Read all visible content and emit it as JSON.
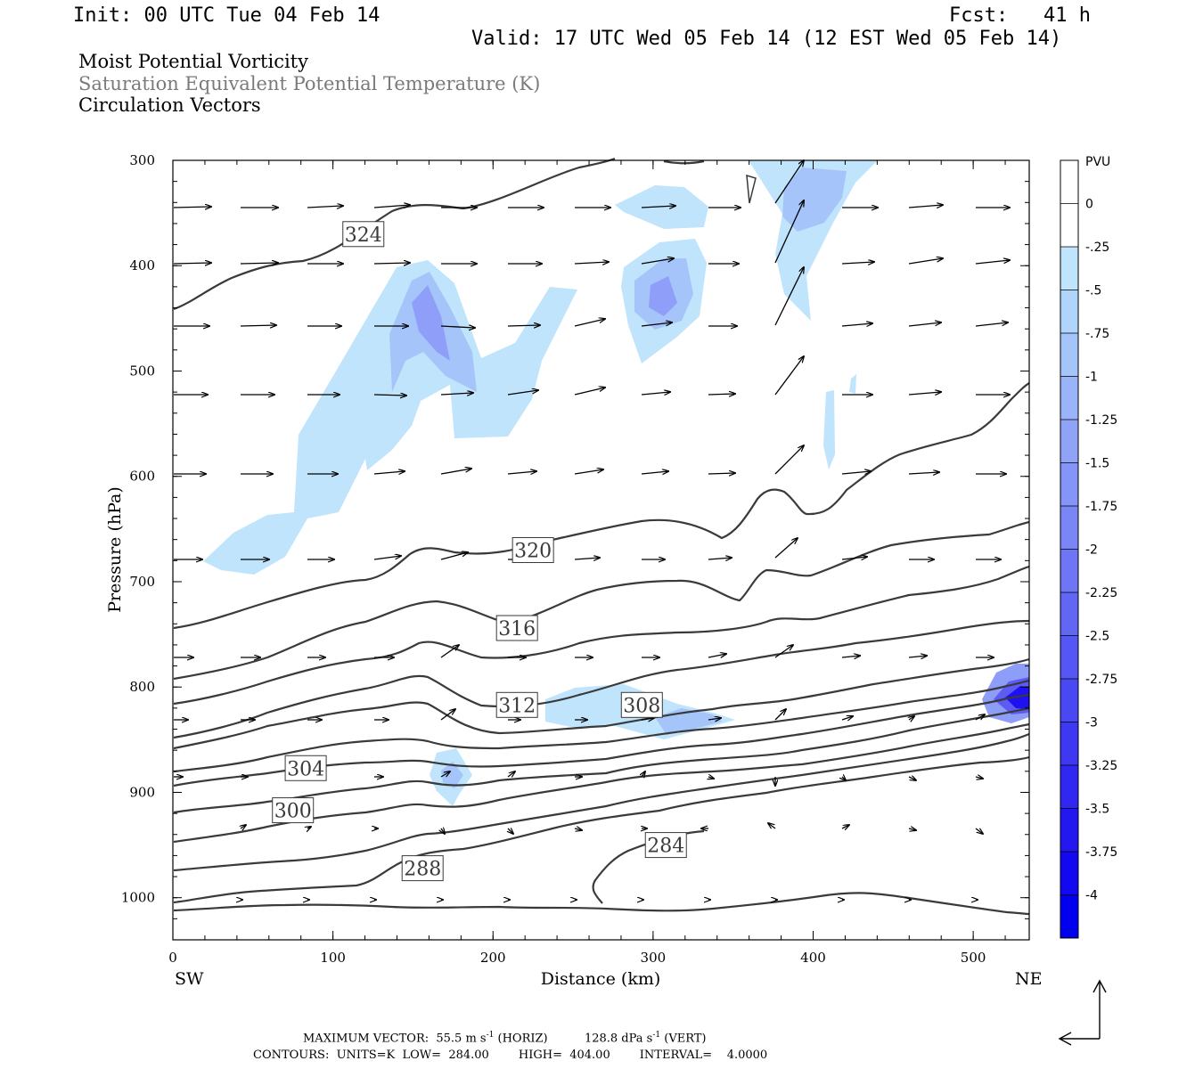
{
  "header": {
    "init": "Init: 00 UTC Tue 04 Feb 14",
    "fcst": "Fcst:   41 h",
    "valid": "Valid: 17 UTC Wed 05 Feb 14 (12 EST Wed 05 Feb 14)"
  },
  "fields": {
    "line1": "Moist Potential Vorticity",
    "line2": "Saturation Equivalent Potential Temperature (K)",
    "line3": "Circulation Vectors"
  },
  "colors": {
    "contour": "#3a3a3a",
    "mpv_scale": [
      "#ffffff",
      "#ffffff",
      "#bfe4fb",
      "#b0d4fb",
      "#a4c4fa",
      "#9ab4f9",
      "#8fa4f8",
      "#8494f7",
      "#7a86f6",
      "#6e76f5",
      "#6266f4",
      "#5656f4",
      "#4a48f3",
      "#3e38f2",
      "#3028f1",
      "#2418f1",
      "#1408f0",
      "#0000ef"
    ]
  },
  "chart_data": {
    "type": "cross-section",
    "xlabel": "Distance (km)",
    "ylabel": "Pressure (hPa)",
    "xlim": [
      0,
      535
    ],
    "ylim": [
      1040,
      300
    ],
    "x_ticks": [
      0,
      100,
      200,
      300,
      400,
      500
    ],
    "y_ticks": [
      300,
      400,
      500,
      600,
      700,
      800,
      900,
      1000
    ],
    "x_end_labels": {
      "left": "SW",
      "right": "NE"
    },
    "colorbar": {
      "unit": "PVU",
      "labels": [
        "0",
        "-.25",
        "-.5",
        "-.75",
        "-1",
        "-1.25",
        "-1.5",
        "-1.75",
        "-2",
        "-2.25",
        "-2.5",
        "-2.75",
        "-3",
        "-3.25",
        "-3.5",
        "-3.75",
        "-4"
      ]
    },
    "contour_labels": [
      {
        "text": "324",
        "x": 119,
        "p": 370
      },
      {
        "text": "320",
        "x": 225,
        "p": 670
      },
      {
        "text": "316",
        "x": 215,
        "p": 744
      },
      {
        "text": "312",
        "x": 215,
        "p": 817
      },
      {
        "text": "308",
        "x": 293,
        "p": 817
      },
      {
        "text": "304",
        "x": 83,
        "p": 877
      },
      {
        "text": "300",
        "x": 75,
        "p": 917
      },
      {
        "text": "288",
        "x": 156,
        "p": 972
      },
      {
        "text": "284",
        "x": 308,
        "p": 950
      }
    ],
    "footer": {
      "max_vector_prefix": "MAXIMUM VECTOR:  55.5 m s",
      "max_vector_mid": " (HORIZ)          128.8 dPa s",
      "max_vector_suffix": " (VERT)",
      "exp": "-1",
      "contours": "CONTOURS:  UNITS=K  LOW=  284.00        HIGH=  404.00        INTERVAL=    4.0000"
    }
  }
}
